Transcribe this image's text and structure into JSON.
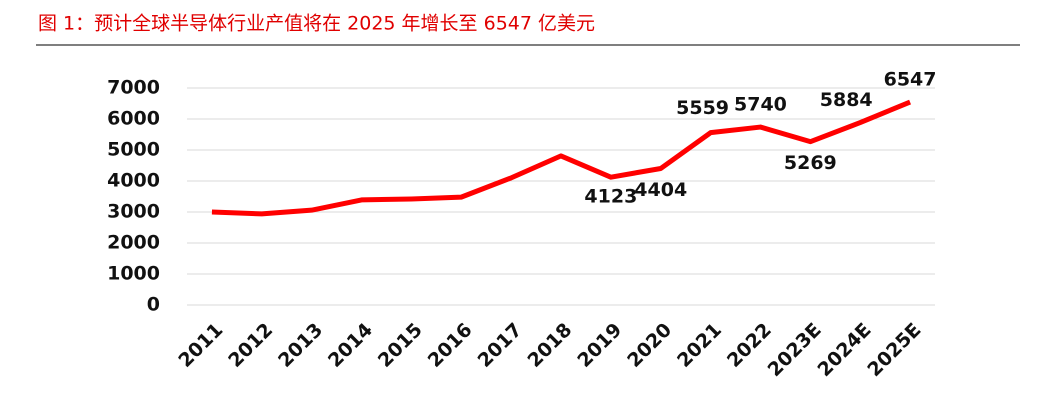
{
  "chart_data": {
    "type": "line",
    "title": "图 1：预计全球半导体行业产值将在 2025 年增长至 6547 亿美元",
    "categories": [
      "2011",
      "2012",
      "2013",
      "2014",
      "2015",
      "2016",
      "2017",
      "2018",
      "2019",
      "2020",
      "2021",
      "2022",
      "2023E",
      "2024E",
      "2025E"
    ],
    "series": [
      {
        "color": "#ff0000",
        "values": [
          3000,
          2940,
          3060,
          3390,
          3420,
          3480,
          4100,
          4810,
          4123,
          4404,
          5559,
          5740,
          5269,
          5884,
          6547
        ],
        "value_labels": [
          null,
          null,
          null,
          null,
          null,
          null,
          null,
          null,
          "4123",
          "4404",
          "5559",
          "5740",
          "5269",
          "5884",
          "6547"
        ]
      }
    ],
    "ylim": [
      0,
      7000
    ],
    "yticks": [
      0,
      1000,
      2000,
      3000,
      4000,
      5000,
      6000,
      7000
    ],
    "grid": true
  }
}
